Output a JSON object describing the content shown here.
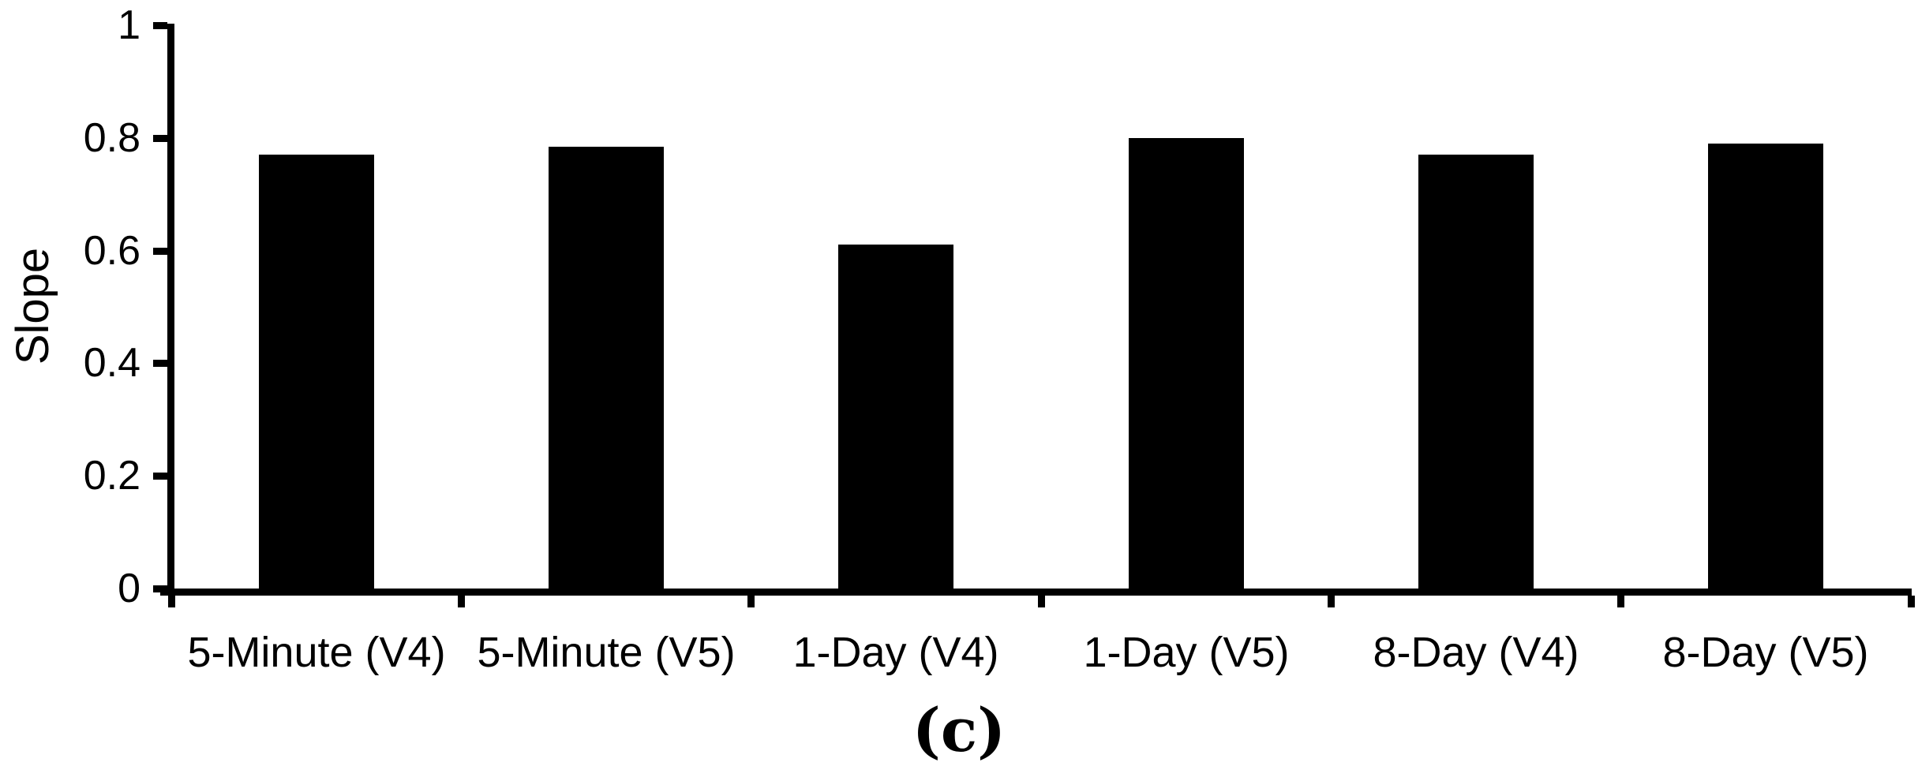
{
  "figure": {
    "caption": "(c)"
  },
  "chart_data": {
    "type": "bar",
    "title": "",
    "xlabel": "",
    "ylabel": "Slope",
    "categories": [
      "5-Minute (V4)",
      "5-Minute (V5)",
      "1-Day (V4)",
      "1-Day (V5)",
      "8-Day (V4)",
      "8-Day (V5)"
    ],
    "values": [
      0.77,
      0.785,
      0.61,
      0.8,
      0.77,
      0.79
    ],
    "ylim": [
      0,
      1
    ],
    "ytick_interval": 0.2,
    "ytick_labels": [
      "0",
      "0.2",
      "0.4",
      "0.6",
      "0.8",
      "1"
    ],
    "ytick_values": [
      0,
      0.2,
      0.4,
      0.6,
      0.8,
      1
    ],
    "bar_color": "#000000",
    "axis_color": "#000000",
    "background_color": "#ffffff",
    "grid": false,
    "legend": false
  }
}
